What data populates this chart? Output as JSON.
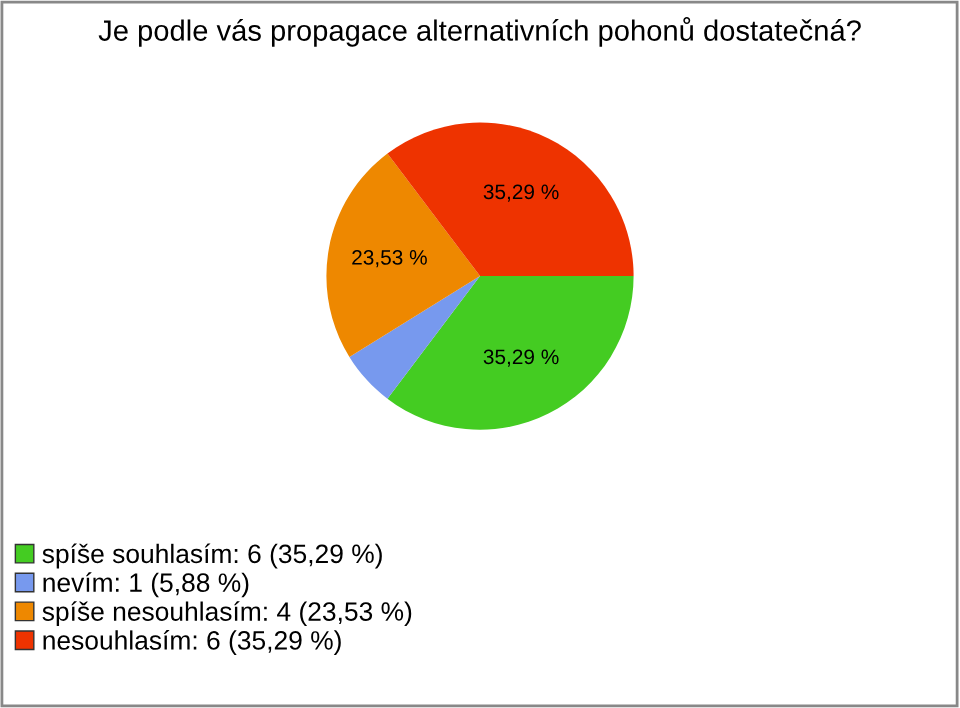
{
  "chart_data": {
    "type": "pie",
    "title": "Je podle vás propagace alternativních pohonů dostatečná?",
    "categories": [
      "spíše souhlasím: 6 (35,29 %)",
      "nevím: 1 (5,88 %)",
      "spíše nesouhlasím: 4 (23,53 %)",
      "nesouhlasím: 6 (35,29 %)"
    ],
    "values": [
      35.29,
      5.88,
      23.53,
      35.29
    ],
    "colors": [
      "#44cc22",
      "#7799ee",
      "#ee8800",
      "#ee3300"
    ],
    "value_labels": [
      "35,29 %",
      null,
      "23,53 %",
      "35,29 %"
    ],
    "legend": "bottom left"
  }
}
